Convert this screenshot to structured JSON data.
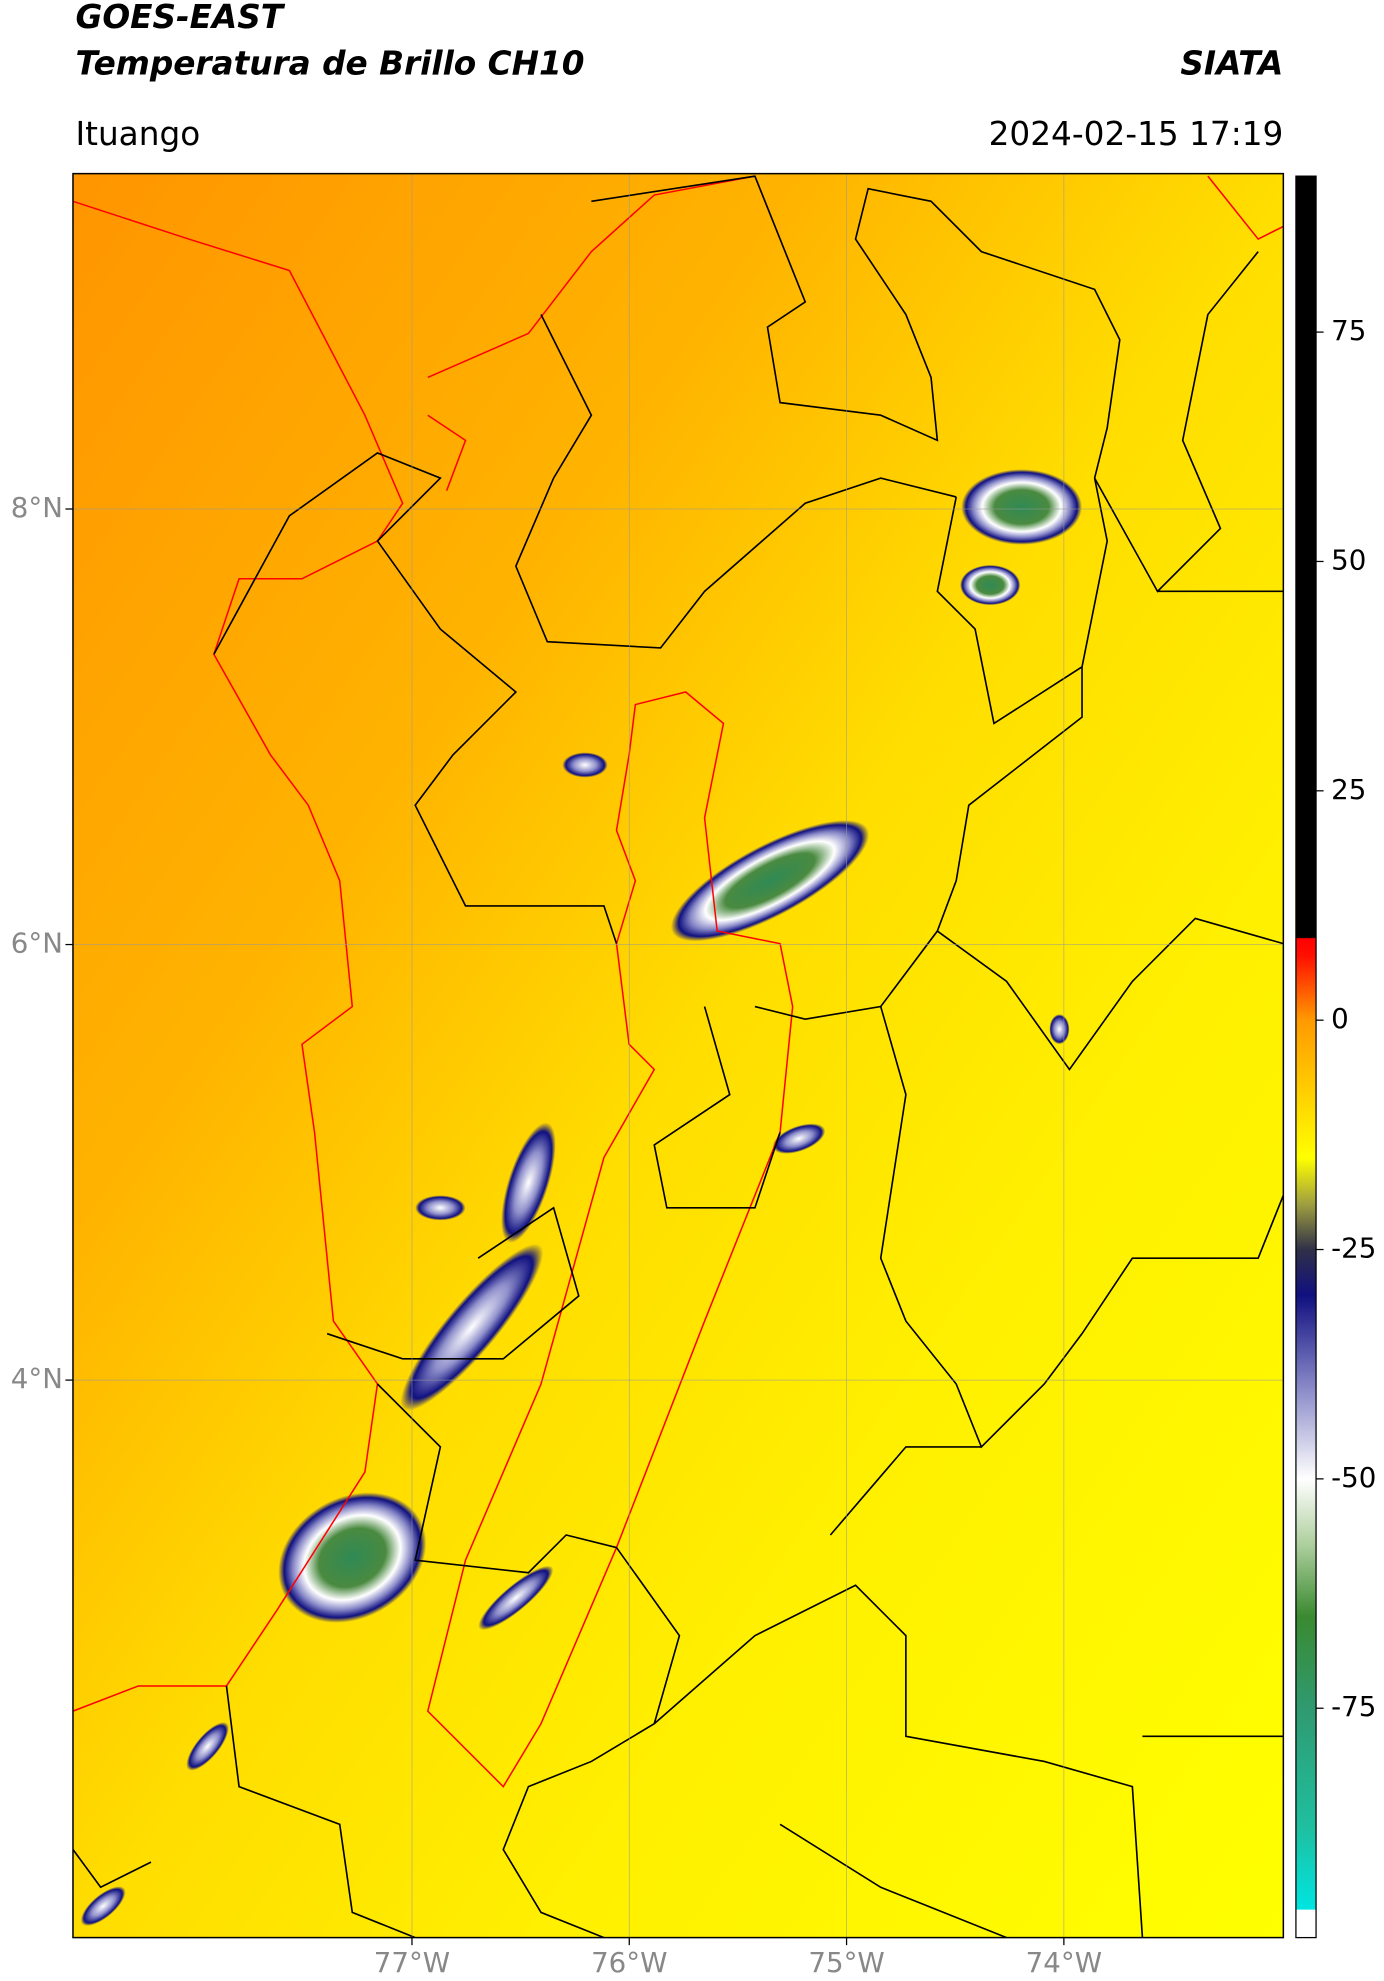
{
  "header": {
    "title": "GOES-EAST",
    "subtitle": "Temperatura de Brillo CH10",
    "org": "SIATA",
    "location": "Ituango",
    "datetime": "2024-02-15 17:19"
  },
  "map": {
    "xlim": [
      -78.56,
      -72.99
    ],
    "ylim": [
      1.44,
      9.54
    ],
    "xticks": [
      {
        "value": -77,
        "label": "77°W"
      },
      {
        "value": -76,
        "label": "76°W"
      },
      {
        "value": -75,
        "label": "75°W"
      },
      {
        "value": -74,
        "label": "74°W"
      }
    ],
    "yticks": [
      {
        "value": 8,
        "label": "8°N"
      },
      {
        "value": 6,
        "label": "6°N"
      },
      {
        "value": 4,
        "label": "4°N"
      }
    ],
    "grid": true
  },
  "colorbar": {
    "lim": [
      -100,
      92
    ],
    "ticks": [
      75,
      50,
      25,
      0,
      -25,
      -50,
      -75
    ],
    "stops": [
      {
        "value": -100,
        "color": "#ffffff"
      },
      {
        "value": -97,
        "color": "#ffffff"
      },
      {
        "value": -96.9,
        "color": "#00e5e0"
      },
      {
        "value": -88,
        "color": "#1fbfa0"
      },
      {
        "value": -75,
        "color": "#2f9a70"
      },
      {
        "value": -65,
        "color": "#3a8a30"
      },
      {
        "value": -57,
        "color": "#b0d0a0"
      },
      {
        "value": -50,
        "color": "#ffffff"
      },
      {
        "value": -40,
        "color": "#8888c8"
      },
      {
        "value": -30,
        "color": "#101080"
      },
      {
        "value": -25,
        "color": "#303048"
      },
      {
        "value": -20,
        "color": "#a0a040"
      },
      {
        "value": -15,
        "color": "#ffff00"
      },
      {
        "value": 0,
        "color": "#ff9a00"
      },
      {
        "value": 7,
        "color": "#ff1000"
      },
      {
        "value": 8.9,
        "color": "#ff0000"
      },
      {
        "value": 9,
        "color": "#000000"
      },
      {
        "value": 92,
        "color": "#000000"
      }
    ]
  }
}
